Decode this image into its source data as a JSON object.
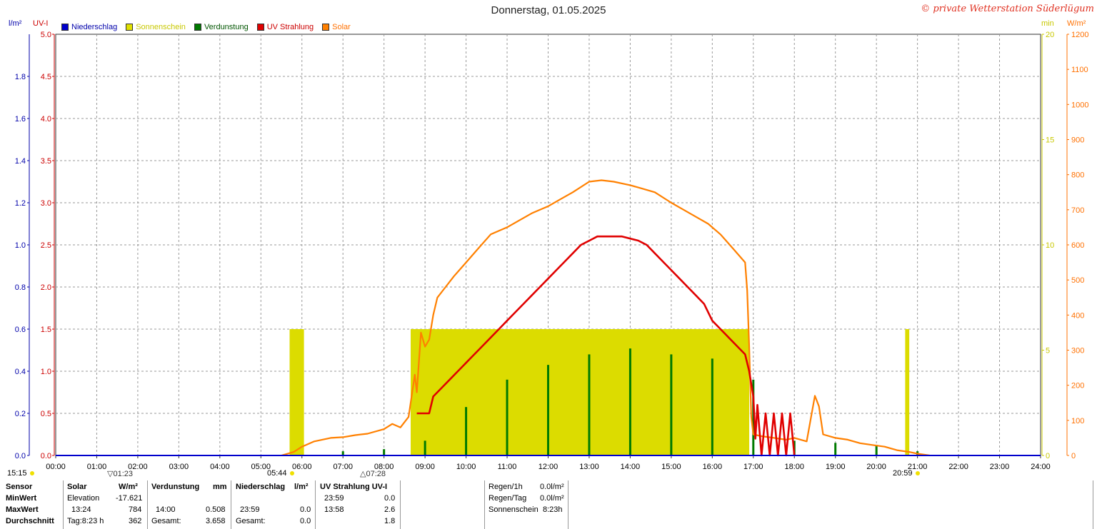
{
  "header": {
    "title": "Donnerstag, 01.05.2025",
    "copyright": "© private Wetterstation Süderlügum"
  },
  "units": {
    "left_outer": "l/m²",
    "left_inner": "UV-I",
    "right_inner": "min",
    "right_outer": "W/m²"
  },
  "legend": [
    {
      "label": "Niederschlag",
      "color": "#0000cc",
      "text_color": "#0000aa"
    },
    {
      "label": "Sonnenschein",
      "color": "#e0e000",
      "text_color": "#c8c800"
    },
    {
      "label": "Verdunstung",
      "color": "#007a00",
      "text_color": "#005500"
    },
    {
      "label": "UV Strahlung",
      "color": "#e00000",
      "text_color": "#cc0000"
    },
    {
      "label": "Solar",
      "color": "#ff8000",
      "text_color": "#ff7000"
    }
  ],
  "sun_events": {
    "sunrise": "05:44",
    "sunset": "20:59",
    "left_time": "15:15",
    "moon1": "01:23",
    "moon2": "07:28"
  },
  "chart_data": {
    "type": "line",
    "x_ticks": [
      "00:00",
      "01:00",
      "02:00",
      "03:00",
      "04:00",
      "05:00",
      "06:00",
      "07:00",
      "08:00",
      "09:00",
      "10:00",
      "11:00",
      "12:00",
      "13:00",
      "14:00",
      "15:00",
      "16:00",
      "17:00",
      "18:00",
      "19:00",
      "20:00",
      "21:00",
      "22:00",
      "23:00",
      "24:00"
    ],
    "y_axes": {
      "niederschlag": {
        "unit": "l/m²",
        "range": [
          0,
          2.0
        ],
        "ticks": [
          "0.0",
          "0.2",
          "0.4",
          "0.6",
          "0.8",
          "1.0",
          "1.2",
          "1.4",
          "1.6",
          "1.8"
        ]
      },
      "uv": {
        "unit": "UV-I",
        "range": [
          0,
          5.0
        ],
        "ticks": [
          "0.0",
          "0.5",
          "1.0",
          "1.5",
          "2.0",
          "2.5",
          "3.0",
          "3.5",
          "4.0",
          "4.5",
          "5.0"
        ]
      },
      "sonnenschein": {
        "unit": "min",
        "range": [
          0,
          20
        ],
        "ticks": [
          "0",
          "5",
          "10",
          "15",
          "20"
        ]
      },
      "solar": {
        "unit": "W/m²",
        "range": [
          0,
          1200
        ],
        "ticks": [
          "0",
          "100",
          "200",
          "300",
          "400",
          "500",
          "600",
          "700",
          "800",
          "900",
          "1000",
          "1100",
          "1200"
        ]
      }
    },
    "series": [
      {
        "name": "Solar",
        "axis": "solar",
        "color": "#ff8000",
        "points": [
          [
            5.5,
            0
          ],
          [
            5.8,
            10
          ],
          [
            6.0,
            25
          ],
          [
            6.3,
            40
          ],
          [
            6.7,
            50
          ],
          [
            7.0,
            52
          ],
          [
            7.3,
            58
          ],
          [
            7.6,
            62
          ],
          [
            8.0,
            75
          ],
          [
            8.2,
            90
          ],
          [
            8.4,
            80
          ],
          [
            8.6,
            110
          ],
          [
            8.75,
            230
          ],
          [
            8.8,
            180
          ],
          [
            8.9,
            350
          ],
          [
            9.0,
            310
          ],
          [
            9.1,
            330
          ],
          [
            9.2,
            400
          ],
          [
            9.3,
            450
          ],
          [
            9.5,
            480
          ],
          [
            9.7,
            510
          ],
          [
            10.0,
            550
          ],
          [
            10.3,
            590
          ],
          [
            10.6,
            630
          ],
          [
            11.0,
            650
          ],
          [
            11.3,
            670
          ],
          [
            11.6,
            690
          ],
          [
            12.0,
            710
          ],
          [
            12.3,
            730
          ],
          [
            12.6,
            750
          ],
          [
            13.0,
            780
          ],
          [
            13.3,
            784
          ],
          [
            13.6,
            780
          ],
          [
            14.0,
            770
          ],
          [
            14.3,
            760
          ],
          [
            14.6,
            750
          ],
          [
            15.0,
            720
          ],
          [
            15.3,
            700
          ],
          [
            15.6,
            680
          ],
          [
            15.9,
            660
          ],
          [
            16.2,
            630
          ],
          [
            16.5,
            590
          ],
          [
            16.8,
            550
          ],
          [
            16.85,
            470
          ],
          [
            16.9,
            310
          ],
          [
            16.95,
            110
          ],
          [
            17.0,
            60
          ],
          [
            17.2,
            55
          ],
          [
            17.5,
            50
          ],
          [
            17.8,
            45
          ],
          [
            18.0,
            50
          ],
          [
            18.3,
            40
          ],
          [
            18.5,
            170
          ],
          [
            18.6,
            140
          ],
          [
            18.7,
            60
          ],
          [
            19.0,
            50
          ],
          [
            19.3,
            45
          ],
          [
            19.6,
            35
          ],
          [
            19.9,
            30
          ],
          [
            20.2,
            25
          ],
          [
            20.5,
            15
          ],
          [
            20.8,
            10
          ],
          [
            21.0,
            5
          ],
          [
            21.3,
            0
          ]
        ]
      },
      {
        "name": "UV Strahlung",
        "axis": "uv",
        "color": "#e00000",
        "points": [
          [
            8.8,
            0.5
          ],
          [
            9.1,
            0.5
          ],
          [
            9.2,
            0.7
          ],
          [
            9.4,
            0.8
          ],
          [
            9.6,
            0.9
          ],
          [
            9.8,
            1.0
          ],
          [
            10.0,
            1.1
          ],
          [
            10.2,
            1.2
          ],
          [
            10.4,
            1.3
          ],
          [
            10.6,
            1.4
          ],
          [
            10.8,
            1.5
          ],
          [
            11.0,
            1.6
          ],
          [
            11.2,
            1.7
          ],
          [
            11.4,
            1.8
          ],
          [
            11.6,
            1.9
          ],
          [
            11.8,
            2.0
          ],
          [
            12.0,
            2.1
          ],
          [
            12.2,
            2.2
          ],
          [
            12.4,
            2.3
          ],
          [
            12.6,
            2.4
          ],
          [
            12.8,
            2.5
          ],
          [
            13.0,
            2.55
          ],
          [
            13.2,
            2.6
          ],
          [
            13.58,
            2.6
          ],
          [
            13.8,
            2.6
          ],
          [
            14.2,
            2.55
          ],
          [
            14.4,
            2.5
          ],
          [
            14.6,
            2.4
          ],
          [
            14.8,
            2.3
          ],
          [
            15.0,
            2.2
          ],
          [
            15.2,
            2.1
          ],
          [
            15.4,
            2.0
          ],
          [
            15.6,
            1.9
          ],
          [
            15.8,
            1.8
          ],
          [
            16.0,
            1.6
          ],
          [
            16.2,
            1.5
          ],
          [
            16.4,
            1.4
          ],
          [
            16.6,
            1.3
          ],
          [
            16.8,
            1.2
          ],
          [
            16.9,
            1.0
          ],
          [
            17.0,
            0.7
          ],
          [
            17.05,
            0.2
          ],
          [
            17.1,
            0.6
          ],
          [
            17.2,
            0.0
          ],
          [
            17.3,
            0.5
          ],
          [
            17.4,
            0.0
          ],
          [
            17.5,
            0.5
          ],
          [
            17.6,
            0.0
          ],
          [
            17.7,
            0.5
          ],
          [
            17.8,
            0.0
          ],
          [
            17.9,
            0.5
          ],
          [
            18.0,
            0.0
          ]
        ]
      }
    ],
    "sonnenschein_blocks": [
      {
        "start": 5.7,
        "end": 6.05,
        "minutes": 6
      },
      {
        "start": 8.65,
        "end": 16.9,
        "minutes": 6
      },
      {
        "start": 20.7,
        "end": 20.8,
        "minutes": 6
      }
    ],
    "verdunstung_bars": [
      {
        "time": 7.0,
        "value": 0.02
      },
      {
        "time": 8.0,
        "value": 0.03
      },
      {
        "time": 9.0,
        "value": 0.07
      },
      {
        "time": 10.0,
        "value": 0.23
      },
      {
        "time": 11.0,
        "value": 0.36
      },
      {
        "time": 12.0,
        "value": 0.43
      },
      {
        "time": 13.0,
        "value": 0.48
      },
      {
        "time": 14.0,
        "value": 0.508
      },
      {
        "time": 15.0,
        "value": 0.48
      },
      {
        "time": 16.0,
        "value": 0.46
      },
      {
        "time": 17.0,
        "value": 0.36
      },
      {
        "time": 18.0,
        "value": 0.07
      },
      {
        "time": 19.0,
        "value": 0.06
      },
      {
        "time": 20.0,
        "value": 0.05
      },
      {
        "time": 21.0,
        "value": 0.02
      }
    ]
  },
  "table": {
    "sensor_col": {
      "header": "Sensor",
      "rows": [
        "MinWert",
        "MaxWert",
        "Durchschnitt"
      ]
    },
    "solar_col": {
      "header": "Solar",
      "unit": "W/m²",
      "min_label": "Elevation",
      "min_value": "-17.621",
      "max_time": "13:24",
      "max_value": "784",
      "avg_label": "Tag:8:23 h",
      "avg_value": "362"
    },
    "verdunstung_col": {
      "header": "Verdunstung",
      "unit": "mm",
      "max_time": "14:00",
      "max_value": "0.508",
      "sum_label": "Gesamt:",
      "sum_value": "3.658"
    },
    "niederschlag_col": {
      "header": "Niederschlag",
      "unit": "l/m²",
      "max_time": "23:59",
      "max_value": "0.0",
      "sum_label": "Gesamt:",
      "sum_value": "0.0"
    },
    "uv_col": {
      "header": "UV Strahlung UV-I",
      "min_time": "23:59",
      "min_value": "0.0",
      "max_time": "13:58",
      "max_value": "2.6",
      "avg_value": "1.8"
    },
    "summary": {
      "regen1h_label": "Regen/1h",
      "regen1h_value": "0.0l/m²",
      "regentag_label": "Regen/Tag",
      "regentag_value": "0.0l/m²",
      "sonnenschein_label": "Sonnenschein",
      "sonnenschein_value": "8:23h"
    }
  }
}
